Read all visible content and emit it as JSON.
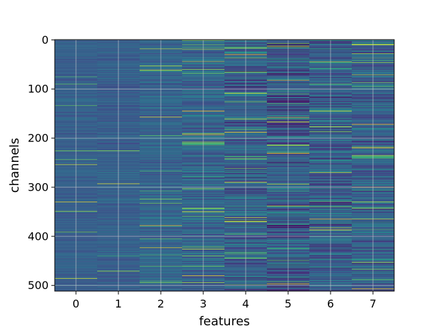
{
  "chart_data": {
    "type": "heatmap",
    "title": "",
    "xlabel": "features",
    "ylabel": "channels",
    "x_categories": [
      0,
      1,
      2,
      3,
      4,
      5,
      6,
      7
    ],
    "x_tick_labels": [
      "0",
      "1",
      "2",
      "3",
      "4",
      "5",
      "6",
      "7"
    ],
    "y_range": [
      0,
      512
    ],
    "y_ticks": [
      0,
      100,
      200,
      300,
      400,
      500
    ],
    "y_tick_labels": [
      "0",
      "100",
      "200",
      "300",
      "400",
      "500"
    ],
    "y_axis_inverted": true,
    "grid": true,
    "colormap": "viridis",
    "colormap_stops": [
      "#440154",
      "#414487",
      "#2a788e",
      "#22a884",
      "#7ad151",
      "#fde725"
    ],
    "column_value_spread": [
      0.12,
      0.14,
      0.2,
      0.3,
      0.4,
      0.45,
      0.4,
      0.35
    ],
    "column_value_center": [
      0.3,
      0.3,
      0.32,
      0.32,
      0.3,
      0.28,
      0.3,
      0.3
    ],
    "notable_bright_channels": [
      {
        "feature": 4,
        "channel": 0
      },
      {
        "feature": 7,
        "channel": 10
      },
      {
        "feature": 5,
        "channel": 231
      },
      {
        "feature": 4,
        "channel": 290
      },
      {
        "feature": 7,
        "channel": 300
      },
      {
        "feature": 4,
        "channel": 370
      },
      {
        "feature": 5,
        "channel": 497
      }
    ],
    "notable_dark_channels": [
      {
        "feature": 5,
        "channel": 381
      },
      {
        "feature": 4,
        "channel": 499
      }
    ]
  }
}
